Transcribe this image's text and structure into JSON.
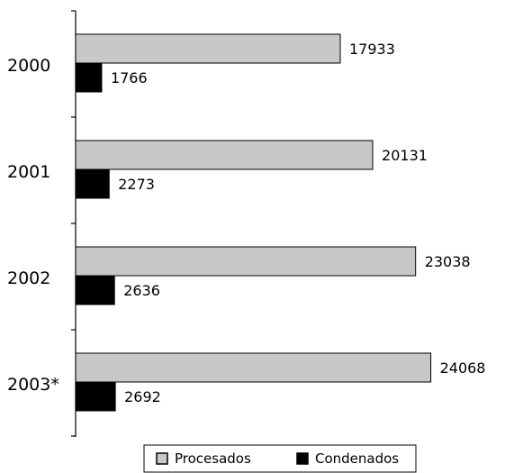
{
  "chart_data": {
    "type": "bar",
    "orientation": "horizontal",
    "categories": [
      "2000",
      "2001",
      "2002",
      "2003*"
    ],
    "series": [
      {
        "name": "Procesados",
        "values": [
          17933,
          20131,
          23038,
          24068
        ],
        "color": "#c8c8c8"
      },
      {
        "name": "Condenados",
        "values": [
          1766,
          2273,
          2636,
          2692
        ],
        "color": "#000000"
      }
    ],
    "xlim": [
      0,
      26000
    ],
    "grid": false,
    "legend_position": "bottom"
  }
}
